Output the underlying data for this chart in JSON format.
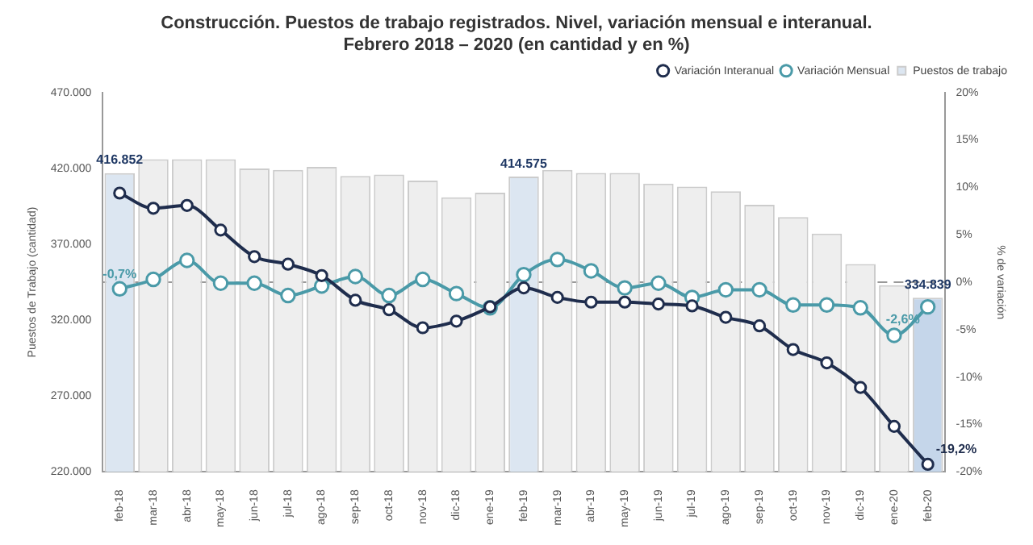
{
  "chart_data": {
    "type": "bar",
    "title": "Construcción. Puestos de trabajo registrados. Nivel, variación mensual e interanual.",
    "subtitle": "Febrero 2018 – 2020 (en cantidad y en %)",
    "ylabel": "Puestos de Trabajo (cantidad)",
    "y2label": "% de variación",
    "categories": [
      "feb-18",
      "mar-18",
      "abr-18",
      "may-18",
      "jun-18",
      "jul-18",
      "ago-18",
      "sep-18",
      "oct-18",
      "nov-18",
      "dic-18",
      "ene-19",
      "feb-19",
      "mar-19",
      "abr-19",
      "may-19",
      "jun-19",
      "jul-19",
      "ago-19",
      "sep-19",
      "oct-19",
      "nov-19",
      "dic-19",
      "ene-20",
      "feb-20"
    ],
    "series": [
      {
        "name": "Puestos de trabajo",
        "colors": [
          "#dce6f1",
          "#eeeeee",
          "#eeeeee",
          "#eeeeee",
          "#eeeeee",
          "#eeeeee",
          "#eeeeee",
          "#eeeeee",
          "#eeeeee",
          "#eeeeee",
          "#eeeeee",
          "#eeeeee",
          "#dce6f1",
          "#eeeeee",
          "#eeeeee",
          "#eeeeee",
          "#eeeeee",
          "#eeeeee",
          "#eeeeee",
          "#eeeeee",
          "#eeeeee",
          "#eeeeee",
          "#eeeeee",
          "#eeeeee",
          "#c5d6ea"
        ],
        "values": [
          416852,
          426000,
          426000,
          426000,
          420000,
          419000,
          421000,
          415000,
          416000,
          412000,
          401000,
          404000,
          414575,
          419000,
          417000,
          417000,
          410000,
          408000,
          405000,
          396000,
          388000,
          377000,
          357000,
          343000,
          334839
        ],
        "value_labels": [
          "416.852",
          null,
          null,
          null,
          null,
          null,
          null,
          null,
          null,
          null,
          null,
          null,
          "414.575",
          null,
          null,
          null,
          null,
          null,
          null,
          null,
          null,
          null,
          null,
          null,
          "334.839"
        ]
      },
      {
        "name": "Variación Interanual",
        "type": "line",
        "axis": "y2",
        "color": "#1f2d4d",
        "values": [
          9.4,
          7.8,
          8.1,
          5.5,
          2.7,
          1.9,
          0.7,
          -1.9,
          -2.9,
          -4.8,
          -4.1,
          -2.6,
          -0.6,
          -1.6,
          -2.1,
          -2.1,
          -2.3,
          -2.5,
          -3.7,
          -4.6,
          -7.1,
          -8.5,
          -11.1,
          -15.2,
          -19.2
        ],
        "value_labels": [
          null,
          null,
          null,
          null,
          null,
          null,
          null,
          null,
          null,
          null,
          null,
          null,
          null,
          null,
          null,
          null,
          null,
          null,
          null,
          null,
          null,
          null,
          null,
          null,
          "-19,2%"
        ]
      },
      {
        "name": "Variación Mensual",
        "type": "line",
        "axis": "y2",
        "color": "#4a9aa8",
        "values": [
          -0.7,
          0.3,
          2.3,
          -0.1,
          -0.1,
          -1.4,
          -0.4,
          0.6,
          -1.4,
          0.3,
          -1.2,
          -2.7,
          0.8,
          2.4,
          1.2,
          -0.6,
          -0.1,
          -1.6,
          -0.8,
          -0.8,
          -2.4,
          -2.4,
          -2.7,
          -5.6,
          -2.6
        ],
        "value_labels": [
          "-0,7%",
          null,
          null,
          null,
          null,
          null,
          null,
          null,
          null,
          null,
          null,
          null,
          null,
          null,
          null,
          null,
          null,
          null,
          null,
          null,
          null,
          null,
          null,
          null,
          "-2,6%"
        ]
      }
    ],
    "ylim": [
      220000,
      470000
    ],
    "yticks": [
      {
        "value": 220000,
        "label": "220.000"
      },
      {
        "value": 270000,
        "label": "270.000"
      },
      {
        "value": 320000,
        "label": "320.000"
      },
      {
        "value": 370000,
        "label": "370.000"
      },
      {
        "value": 420000,
        "label": "420.000"
      },
      {
        "value": 470000,
        "label": "470.000"
      }
    ],
    "y2lim": [
      -20,
      20
    ],
    "y2ticks": [
      {
        "value": -20,
        "label": "-20%"
      },
      {
        "value": -15,
        "label": "-15%"
      },
      {
        "value": -10,
        "label": "-10%"
      },
      {
        "value": -5,
        "label": "-5%"
      },
      {
        "value": 0,
        "label": "0%"
      },
      {
        "value": 5,
        "label": "5%"
      },
      {
        "value": 10,
        "label": "10%"
      },
      {
        "value": 15,
        "label": "15%"
      },
      {
        "value": 20,
        "label": "20%"
      }
    ],
    "ref_lines": [
      {
        "axis": "y2",
        "value": 0,
        "color": "#999999",
        "line_style": "dashed"
      }
    ],
    "grid": false,
    "legend": "top right",
    "marker": "circle",
    "line_style": "solid"
  }
}
